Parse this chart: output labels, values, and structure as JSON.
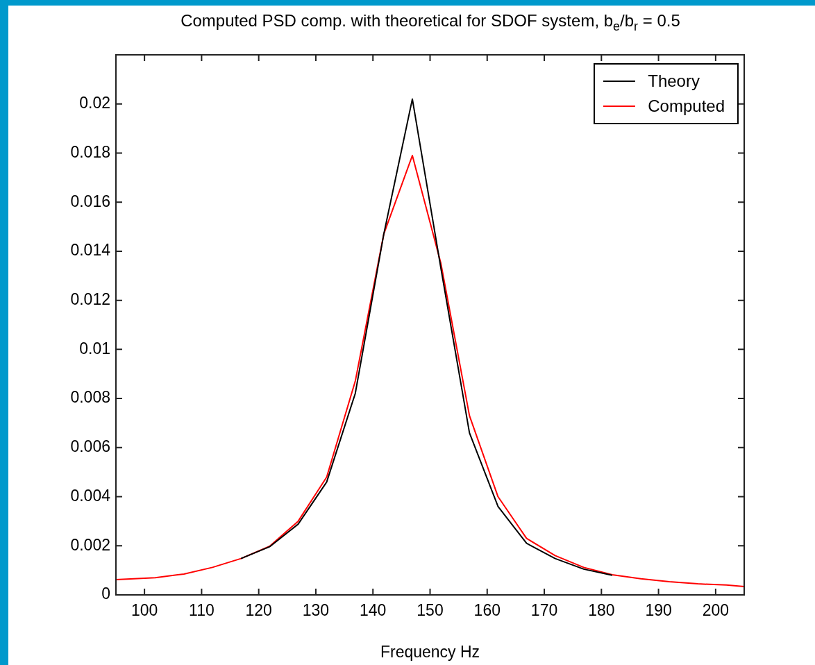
{
  "chart_data": {
    "type": "line",
    "title": "Computed PSD comp. with theoretical for SDOF system, b$_{e}$/b$_{r}$ = 0.5",
    "xlabel": "Frequency Hz",
    "xlim": [
      95,
      205
    ],
    "xticks": [
      100,
      110,
      120,
      130,
      140,
      150,
      160,
      170,
      180,
      190,
      200
    ],
    "ylim": [
      0,
      0.022
    ],
    "yticks": [
      0,
      0.002,
      0.004,
      0.006,
      0.008,
      0.01,
      0.012,
      0.014,
      0.016,
      0.018,
      0.02
    ],
    "grid": false,
    "legend": "top right",
    "marker": "none",
    "line_style": "solid",
    "series": [
      {
        "name": "Theory",
        "color": "#000000",
        "x": [
          116.9,
          121.9,
          126.9,
          131.9,
          136.9,
          141.9,
          146.9,
          151.9,
          156.9,
          161.9,
          166.9,
          171.9,
          176.9,
          181.9
        ],
        "values": [
          0.00148,
          0.00196,
          0.00288,
          0.0046,
          0.0082,
          0.0147,
          0.0202,
          0.0133,
          0.0066,
          0.0036,
          0.0021,
          0.00148,
          0.00105,
          0.0008
        ]
      },
      {
        "name": "Computed",
        "color": "#ff0000",
        "x": [
          95,
          96.9,
          101.9,
          106.9,
          111.9,
          116.9,
          121.9,
          126.9,
          131.9,
          136.9,
          141.9,
          146.9,
          151.9,
          156.9,
          161.9,
          166.9,
          171.9,
          176.9,
          181.9,
          186.9,
          191.9,
          196.9,
          201.9,
          205
        ],
        "values": [
          0.00062,
          0.00064,
          0.0007,
          0.00085,
          0.00112,
          0.00148,
          0.00198,
          0.003,
          0.0048,
          0.0087,
          0.0147,
          0.0179,
          0.0135,
          0.0073,
          0.004,
          0.0023,
          0.0016,
          0.00112,
          0.00082,
          0.00066,
          0.00054,
          0.00045,
          0.0004,
          0.00034
        ]
      }
    ]
  }
}
